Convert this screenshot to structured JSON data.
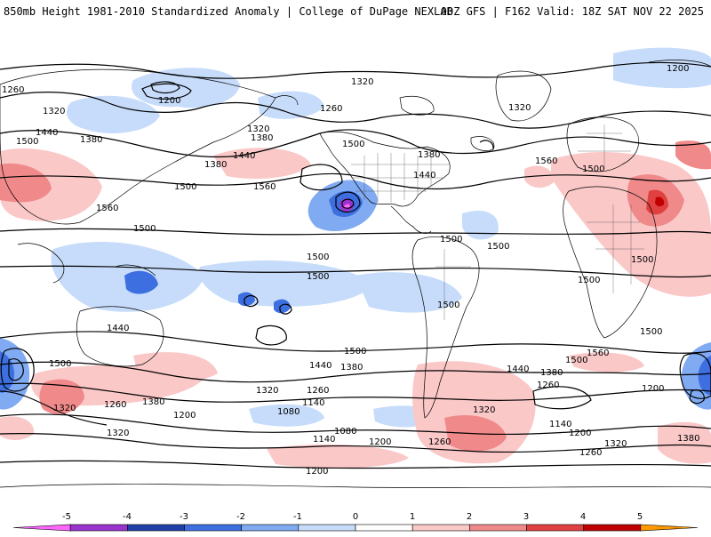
{
  "header": {
    "left_title": "850mb Height 1981-2010 Standardized Anomaly | College of DuPage NEXLAB",
    "right_title": "00Z GFS | F162 Valid: 18Z SAT NOV 22 2025"
  },
  "colorbar": {
    "ticks": [
      "-5",
      "-4",
      "-3",
      "-2",
      "-1",
      "0",
      "1",
      "2",
      "3",
      "4",
      "5"
    ],
    "colors": [
      "#ff66ff",
      "#9933cc",
      "#1f3fa8",
      "#3d6fe0",
      "#80aaf2",
      "#c6dcfa",
      "#ffffff",
      "#fbc8c8",
      "#f08a8a",
      "#e04040",
      "#c00000",
      "#ff9900"
    ]
  },
  "contour_labels": [
    "1260",
    "1200",
    "1320",
    "1380",
    "1440",
    "1500",
    "1560",
    "1320",
    "1380",
    "1500",
    "1260",
    "1320",
    "1440",
    "1380",
    "1500",
    "1560",
    "1200",
    "1320",
    "1440",
    "1380",
    "1500",
    "1560",
    "1500",
    "1500",
    "1500",
    "1500",
    "1500",
    "1500",
    "1500",
    "1440",
    "1500",
    "1380",
    "1320",
    "1260",
    "1200",
    "1140",
    "1080",
    "1260",
    "1320",
    "1380",
    "1440",
    "1500",
    "1500",
    "1500",
    "1560",
    "1440",
    "1380",
    "1320",
    "1260",
    "1200",
    "1140",
    "1200",
    "1080",
    "1140",
    "1200",
    "1260",
    "1320",
    "1260",
    "1320",
    "1380",
    "1500",
    "1200"
  ],
  "anomaly_colors": {
    "neg1": "#c6dcfa",
    "neg2": "#80aaf2",
    "neg3": "#3d6fe0",
    "neg4": "#1f3fa8",
    "neg5": "#9933cc",
    "pos1": "#fbc8c8",
    "pos2": "#f08a8a",
    "pos3": "#e04040",
    "pos4": "#c00000"
  }
}
